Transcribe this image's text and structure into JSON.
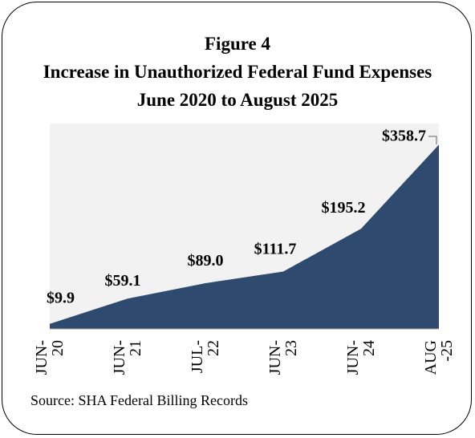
{
  "chart_data": {
    "type": "area",
    "title": "Figure 4",
    "subtitle_line1": "Increase in Unauthorized Federal Fund Expenses",
    "subtitle_line2": "June 2020 to August 2025",
    "x_tick_labels": [
      [
        "JUN-",
        "20"
      ],
      [
        "JUN-",
        "21"
      ],
      [
        "JUL-",
        "22"
      ],
      [
        "JUN-",
        "23"
      ],
      [
        "JUN-",
        "24"
      ],
      [
        "AUG",
        "-25"
      ]
    ],
    "values": [
      9.9,
      59.1,
      89.0,
      111.7,
      195.2,
      358.7
    ],
    "data_labels": [
      "$9.9",
      "$59.1",
      "$89.0",
      "$111.7",
      "$195.2",
      "$358.7"
    ],
    "ylim": [
      0,
      400
    ],
    "series_color": "#2e4a6e",
    "plot_background": "#f2f2f2",
    "grid": false,
    "legend": "none"
  },
  "source": "Source: SHA Federal Billing Records"
}
